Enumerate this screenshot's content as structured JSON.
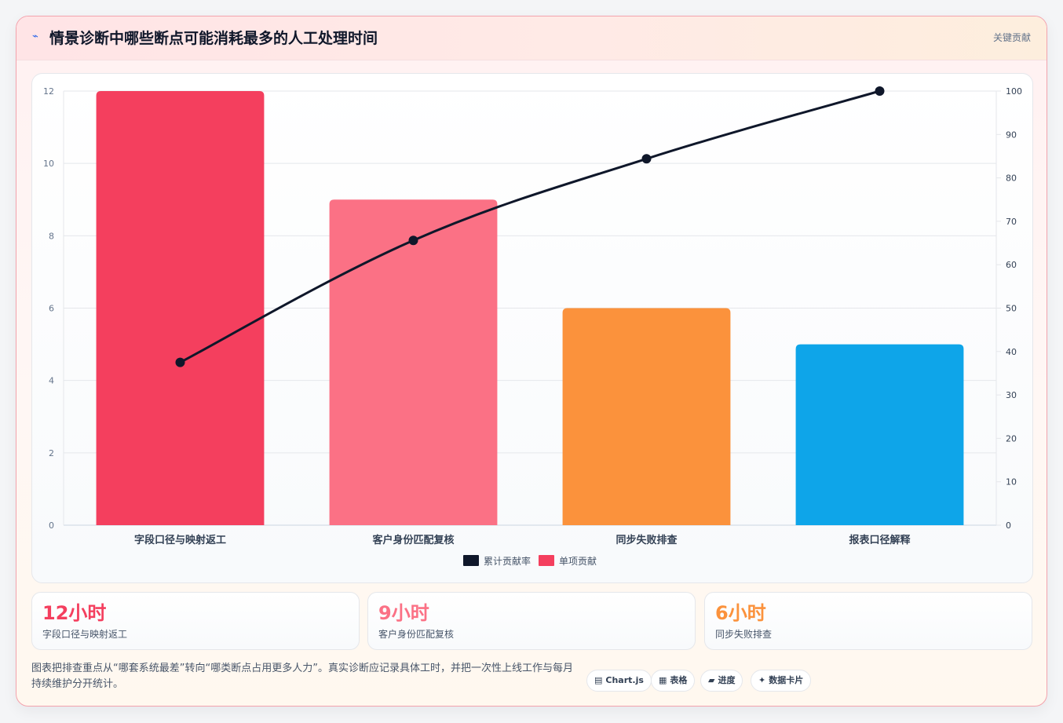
{
  "header": {
    "icon": "bolt-icon",
    "title": "情景诊断中哪些断点可能消耗最多的人工处理时间",
    "tag": "关键贡献"
  },
  "chart_data": {
    "type": "bar",
    "categories": [
      "字段口径与映射返工",
      "客户身份匹配复核",
      "同步失败排查",
      "报表口径解释"
    ],
    "series": [
      {
        "name": "单项贡献",
        "type": "bar",
        "axis": "left",
        "values": [
          12,
          9,
          6,
          5
        ],
        "colors": [
          "#f43f5e",
          "#fb7185",
          "#fb923c",
          "#0ea5e9"
        ]
      },
      {
        "name": "累计贡献率",
        "type": "line",
        "axis": "right",
        "values": [
          37.5,
          65.6,
          84.4,
          100
        ],
        "color": "#0f172a"
      }
    ],
    "ylim": [
      0,
      12
    ],
    "yticks": [
      0,
      2,
      4,
      6,
      8,
      10,
      12
    ],
    "y2lim": [
      0,
      100
    ],
    "y2ticks": [
      0,
      10,
      20,
      30,
      40,
      50,
      60,
      70,
      80,
      90,
      100
    ],
    "legend": {
      "position": "bottom",
      "items": [
        {
          "label": "累计贡献率",
          "color": "#0f172a"
        },
        {
          "label": "单项贡献",
          "color": "#f43f5e"
        }
      ]
    },
    "grid": true
  },
  "kpis": [
    {
      "value": "12小时",
      "label": "字段口径与映射返工",
      "color": "#f43f5e"
    },
    {
      "value": "9小时",
      "label": "客户身份匹配复核",
      "color": "#fb7185"
    },
    {
      "value": "6小时",
      "label": "同步失败排查",
      "color": "#fb923c"
    }
  ],
  "footer": {
    "note": "图表把排查重点从“哪套系统最差”转向“哪类断点占用更多人力”。真实诊断应记录具体工时，并把一次性上线工作与每月持续维护分开统计。",
    "pills": [
      {
        "icon": "▤",
        "label": "Chart.js"
      },
      {
        "icon": "▦",
        "label": "表格"
      },
      {
        "icon": "▰",
        "label": "进度"
      },
      {
        "icon": "✦",
        "label": "数据卡片"
      }
    ]
  }
}
